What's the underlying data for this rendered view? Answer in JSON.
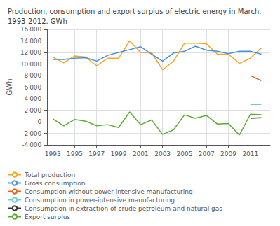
{
  "chart_data": {
    "type": "line",
    "title": "Production, consumption and export surplus of electric energy in March.\n1993-2012. GWh",
    "ylabel": "GWh",
    "x": [
      1993,
      1994,
      1995,
      1996,
      1997,
      1998,
      1999,
      2000,
      2001,
      2002,
      2003,
      2004,
      2005,
      2006,
      2007,
      2008,
      2009,
      2010,
      2011,
      2012
    ],
    "series": [
      {
        "name": "Total production",
        "color": "#f5a623",
        "values": [
          11200,
          10200,
          11400,
          11200,
          9700,
          11000,
          11000,
          14000,
          12000,
          12000,
          9000,
          10500,
          13600,
          13600,
          13500,
          11700,
          11700,
          10100,
          11000,
          12800
        ]
      },
      {
        "name": "Gross consumption",
        "color": "#4a90d9",
        "values": [
          10800,
          10800,
          11000,
          11100,
          10500,
          11500,
          12000,
          12500,
          13000,
          11700,
          10500,
          11900,
          12200,
          13100,
          12400,
          12200,
          11800,
          12200,
          12200,
          11700
        ]
      },
      {
        "name": "Consumption without power-intensive manufacturing",
        "color": "#e8621a",
        "values": [
          null,
          null,
          null,
          null,
          null,
          null,
          null,
          null,
          null,
          null,
          null,
          null,
          null,
          null,
          null,
          null,
          null,
          null,
          8000,
          7100
        ]
      },
      {
        "name": "Consumption in power-intensive manufacturing",
        "color": "#6ecfcf",
        "values": [
          null,
          null,
          null,
          null,
          null,
          null,
          null,
          null,
          null,
          null,
          null,
          null,
          null,
          null,
          null,
          null,
          null,
          null,
          3000,
          3000
        ]
      },
      {
        "name": "Consumption in extraction of crude petroleum and natural gas",
        "color": "#333333",
        "values": [
          null,
          null,
          null,
          null,
          null,
          null,
          null,
          null,
          null,
          null,
          null,
          null,
          null,
          null,
          null,
          null,
          null,
          null,
          600,
          700
        ]
      },
      {
        "name": "Export surplus",
        "color": "#5aad2e",
        "values": [
          500,
          -700,
          400,
          100,
          -700,
          -500,
          -1000,
          1700,
          -500,
          300,
          -2200,
          -1400,
          1200,
          600,
          1100,
          -400,
          -300,
          -2300,
          1300,
          1200
        ]
      }
    ],
    "xlim": [
      1992.5,
      2012.8
    ],
    "xticks": [
      1993,
      1995,
      1997,
      1999,
      2001,
      2003,
      2005,
      2007,
      2009,
      2011
    ],
    "ylim": [
      -4000,
      16000
    ],
    "yticks": [
      {
        "value": -4000,
        "label": "-4 000"
      },
      {
        "value": -2000,
        "label": "-2 000"
      },
      0,
      {
        "value": 2000,
        "label": "2 000"
      },
      {
        "value": 4000,
        "label": "4 000"
      },
      {
        "value": 6000,
        "label": "6 000"
      },
      {
        "value": 8000,
        "label": "8 000"
      },
      {
        "value": 10000,
        "label": "10 000"
      },
      {
        "value": 12000,
        "label": "12 000"
      },
      {
        "value": 14000,
        "label": "14 000"
      },
      {
        "value": 16000,
        "label": "16 000"
      }
    ],
    "grid": true,
    "legend": "bottom"
  }
}
